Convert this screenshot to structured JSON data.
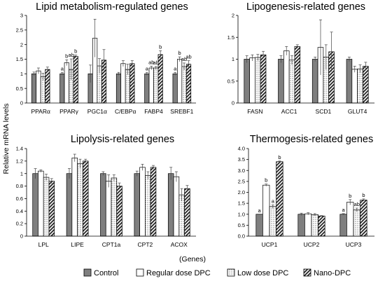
{
  "figure": {
    "ylabel": "Relative mRNA levels",
    "xlabel": "(Genes)"
  },
  "legend": [
    {
      "name": "Control",
      "fill": "gray"
    },
    {
      "name": "Regular dose DPC",
      "fill": "white"
    },
    {
      "name": "Low dose DPC",
      "fill": "dots"
    },
    {
      "name": "Nano-DPC",
      "fill": "stripes"
    }
  ],
  "chart_data": [
    {
      "type": "bar",
      "title": "Lipid metabolism-regulated genes",
      "ylim": [
        0,
        3
      ],
      "yticks": [
        "0",
        "0.5",
        "1",
        "1.5",
        "2",
        "2.5",
        "3"
      ],
      "categories": [
        "PPARα",
        "PPARγ",
        "PGC1α",
        "C/EBPα",
        "FABP4",
        "SREBF1"
      ],
      "series": [
        {
          "name": "Control",
          "values": [
            1.0,
            1.0,
            1.0,
            1.0,
            1.0,
            1.0
          ],
          "errors": [
            0.06,
            0.05,
            0.3,
            0.05,
            0.05,
            0.05
          ],
          "labels": [
            "",
            "a",
            "",
            "",
            "a",
            "a"
          ]
        },
        {
          "name": "Regular dose DPC",
          "values": [
            1.1,
            1.38,
            2.22,
            1.35,
            1.2,
            1.5
          ],
          "errors": [
            0.1,
            0.1,
            0.65,
            0.1,
            0.06,
            0.08
          ],
          "labels": [
            "",
            "b",
            "",
            "",
            "ab",
            "b"
          ]
        },
        {
          "name": "Low dose DPC",
          "values": [
            0.9,
            1.15,
            1.27,
            1.15,
            1.2,
            1.25
          ],
          "errors": [
            0.12,
            0.36,
            0.25,
            0.18,
            0.05,
            0.12
          ],
          "labels": [
            "",
            "ab",
            "",
            "",
            "ab",
            "ab"
          ]
        },
        {
          "name": "Nano-DPC",
          "values": [
            1.15,
            1.6,
            1.47,
            1.35,
            1.66,
            1.33
          ],
          "errors": [
            0.08,
            0.04,
            0.36,
            0.1,
            0.13,
            0.12
          ],
          "labels": [
            "",
            "b",
            "",
            "",
            "b",
            "ab"
          ]
        }
      ]
    },
    {
      "type": "bar",
      "title": "Lipogenesis-related genes",
      "ylim": [
        0,
        2
      ],
      "yticks": [
        "0",
        "0.5",
        "1",
        "1.5",
        "2"
      ],
      "categories": [
        "FASN",
        "ACC1",
        "SCD1",
        "GLUT4"
      ],
      "series": [
        {
          "name": "Control",
          "values": [
            1.0,
            1.0,
            1.0,
            1.0
          ],
          "errors": [
            0.08,
            0.08,
            0.05,
            0.05
          ],
          "labels": [
            "",
            "",
            "",
            ""
          ]
        },
        {
          "name": "Regular dose DPC",
          "values": [
            1.03,
            1.19,
            1.27,
            0.77
          ],
          "errors": [
            0.07,
            0.1,
            0.63,
            0.07
          ],
          "labels": [
            "",
            "",
            "",
            ""
          ]
        },
        {
          "name": "Low dose DPC",
          "values": [
            1.04,
            0.98,
            1.05,
            0.78
          ],
          "errors": [
            0.07,
            0.1,
            0.28,
            0.09
          ],
          "labels": [
            "",
            "",
            "",
            ""
          ]
        },
        {
          "name": "Nano-DPC",
          "values": [
            1.1,
            1.29,
            1.17,
            0.84
          ],
          "errors": [
            0.08,
            0.04,
            0.45,
            0.09
          ],
          "labels": [
            "",
            "",
            "",
            ""
          ]
        }
      ]
    },
    {
      "type": "bar",
      "title": "Lipolysis-related genes",
      "ylim": [
        0,
        1.4
      ],
      "yticks": [
        "0",
        "0.2",
        "0.4",
        "0.6",
        "0.8",
        "1",
        "1.2",
        "1.4"
      ],
      "categories": [
        "LPL",
        "LIPE",
        "CPT1a",
        "CPT2",
        "ACOX"
      ],
      "series": [
        {
          "name": "Control",
          "values": [
            1.0,
            1.0,
            1.0,
            1.0,
            1.0
          ],
          "errors": [
            0.08,
            0.08,
            0.03,
            0.04,
            0.1
          ],
          "labels": [
            "",
            "",
            "",
            "",
            ""
          ]
        },
        {
          "name": "Regular dose DPC",
          "values": [
            1.04,
            1.25,
            0.88,
            1.1,
            0.95
          ],
          "errors": [
            0.02,
            0.06,
            0.1,
            0.05,
            0.08
          ],
          "labels": [
            "",
            "",
            "",
            "",
            ""
          ]
        },
        {
          "name": "Low dose DPC",
          "values": [
            0.94,
            1.16,
            0.93,
            0.97,
            0.66
          ],
          "errors": [
            0.05,
            0.07,
            0.05,
            0.06,
            0.1
          ],
          "labels": [
            "",
            "",
            "",
            "",
            ""
          ]
        },
        {
          "name": "Nano-DPC",
          "values": [
            0.88,
            1.2,
            0.8,
            1.1,
            0.76
          ],
          "errors": [
            0.04,
            0.03,
            0.05,
            0.03,
            0.05
          ],
          "labels": [
            "",
            "",
            "",
            "",
            ""
          ]
        }
      ]
    },
    {
      "type": "bar",
      "title": "Thermogesis-related genes",
      "ylim": [
        0,
        4
      ],
      "yticks": [
        "0.0",
        "0.5",
        "1.0",
        "1.5",
        "2.0",
        "2.5",
        "3.0",
        "3.5",
        "4.0"
      ],
      "categories": [
        "UCP1",
        "UCP2",
        "UCP3"
      ],
      "series": [
        {
          "name": "Control",
          "values": [
            1.0,
            1.0,
            1.0
          ],
          "errors": [
            0.0,
            0.05,
            0.03
          ],
          "labels": [
            "a",
            "",
            "a"
          ]
        },
        {
          "name": "Regular dose DPC",
          "values": [
            2.33,
            1.02,
            1.55
          ],
          "errors": [
            0.05,
            0.05,
            0.12
          ],
          "labels": [
            "b",
            "",
            "b"
          ]
        },
        {
          "name": "Low dose DPC",
          "values": [
            1.35,
            0.98,
            1.2
          ],
          "errors": [
            0.08,
            0.05,
            0.08
          ],
          "labels": [
            "a",
            "",
            "ab"
          ]
        },
        {
          "name": "Nano-DPC",
          "values": [
            3.4,
            0.92,
            1.65
          ],
          "errors": [
            0.03,
            0.02,
            0.05
          ],
          "labels": [
            "b",
            "",
            "b"
          ]
        }
      ]
    }
  ]
}
